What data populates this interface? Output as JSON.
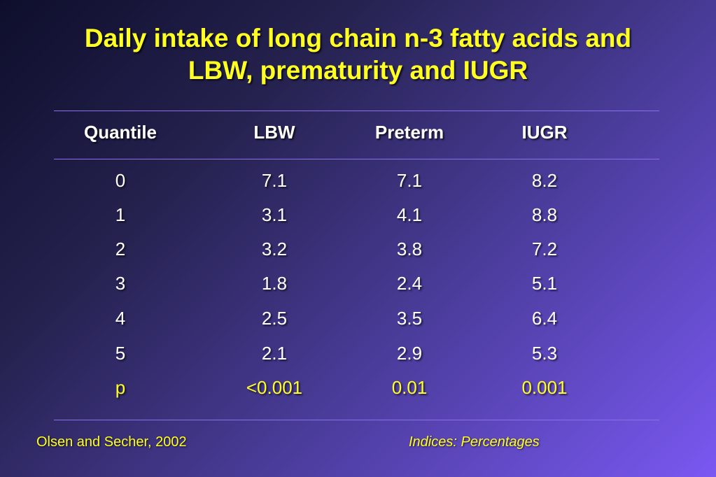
{
  "title": {
    "line1": "Daily intake of long chain n-3 fatty acids and",
    "line2": "LBW, prematurity and IUGR"
  },
  "table": {
    "headers": [
      "Quantile",
      "LBW",
      "Preterm",
      "IUGR"
    ],
    "rows": [
      [
        "0",
        "7.1",
        "7.1",
        "8.2"
      ],
      [
        "1",
        "3.1",
        "4.1",
        "8.8"
      ],
      [
        "2",
        "3.2",
        "3.8",
        "7.2"
      ],
      [
        "3",
        "1.8",
        "2.4",
        "5.1"
      ],
      [
        "4",
        "2.5",
        "3.5",
        "6.4"
      ],
      [
        "5",
        "2.1",
        "2.9",
        "5.3"
      ]
    ],
    "p_row": [
      "p",
      "<0.001",
      "0.01",
      "0.001"
    ]
  },
  "footer": {
    "source": "Olsen and Secher, 2002",
    "note": "Indices: Percentages"
  },
  "colors": {
    "title": "#ffff22",
    "body_text": "#ffffff",
    "rule": "#8a70e8",
    "background_dark": "#0e0e2c",
    "background_light": "#7a58f2"
  }
}
